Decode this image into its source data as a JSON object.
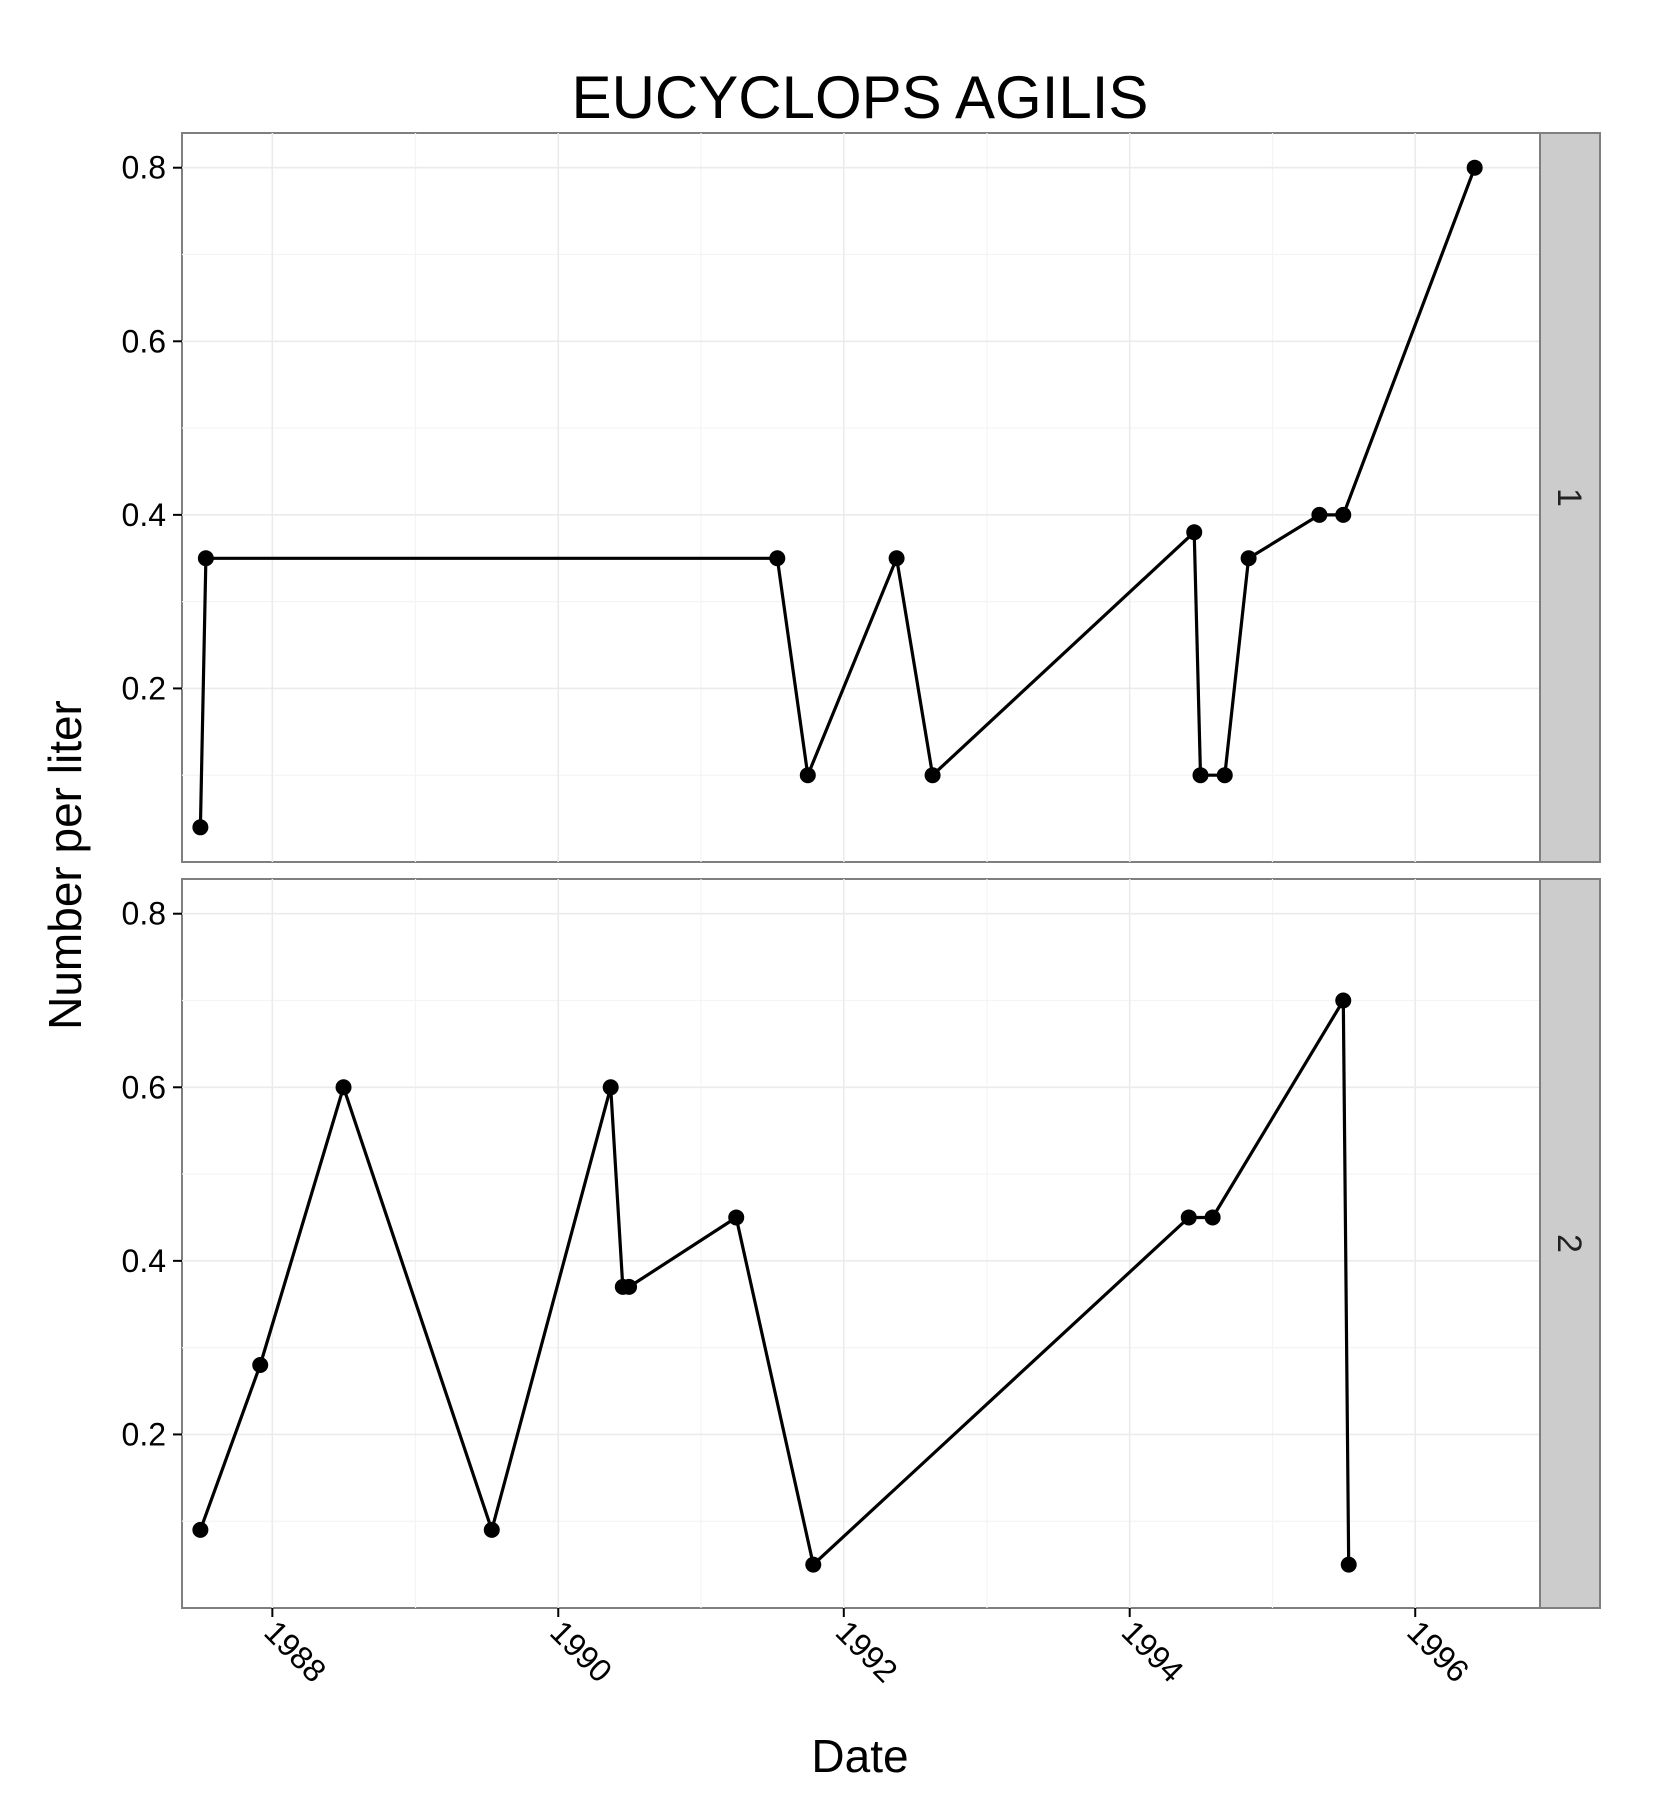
{
  "chart_data": {
    "type": "line",
    "title": "EUCYCLOPS AGILIS",
    "xlabel": "Date",
    "ylabel": "Number per liter",
    "x_ticks": [
      "1988",
      "1990",
      "1992",
      "1994",
      "1996"
    ],
    "y_ticks": [
      "0.2",
      "0.4",
      "0.6",
      "0.8"
    ],
    "xlim": [
      "1987-05-15",
      "1996-11-15"
    ],
    "ylim": [
      0.0,
      0.84
    ],
    "grid": true,
    "facets": [
      {
        "label": "1",
        "points": [
          {
            "x": "1987-07-01",
            "y": 0.04
          },
          {
            "x": "1987-07-15",
            "y": 0.35
          },
          {
            "x": "1991-07-15",
            "y": 0.35
          },
          {
            "x": "1991-10-01",
            "y": 0.1
          },
          {
            "x": "1992-05-15",
            "y": 0.35
          },
          {
            "x": "1992-08-15",
            "y": 0.1
          },
          {
            "x": "1994-06-15",
            "y": 0.38
          },
          {
            "x": "1994-07-01",
            "y": 0.1
          },
          {
            "x": "1994-09-01",
            "y": 0.1
          },
          {
            "x": "1994-11-01",
            "y": 0.35
          },
          {
            "x": "1995-05-01",
            "y": 0.4
          },
          {
            "x": "1995-07-01",
            "y": 0.4
          },
          {
            "x": "1996-06-01",
            "y": 0.8
          }
        ]
      },
      {
        "label": "2",
        "points": [
          {
            "x": "1987-07-01",
            "y": 0.09
          },
          {
            "x": "1987-12-01",
            "y": 0.28
          },
          {
            "x": "1988-07-01",
            "y": 0.6
          },
          {
            "x": "1989-07-15",
            "y": 0.09
          },
          {
            "x": "1990-05-15",
            "y": 0.6
          },
          {
            "x": "1990-06-15",
            "y": 0.37
          },
          {
            "x": "1990-07-01",
            "y": 0.37
          },
          {
            "x": "1991-04-01",
            "y": 0.45
          },
          {
            "x": "1991-10-15",
            "y": 0.05
          },
          {
            "x": "1994-06-01",
            "y": 0.45
          },
          {
            "x": "1994-08-01",
            "y": 0.45
          },
          {
            "x": "1995-07-01",
            "y": 0.7
          },
          {
            "x": "1995-07-15",
            "y": 0.05
          }
        ]
      }
    ]
  }
}
